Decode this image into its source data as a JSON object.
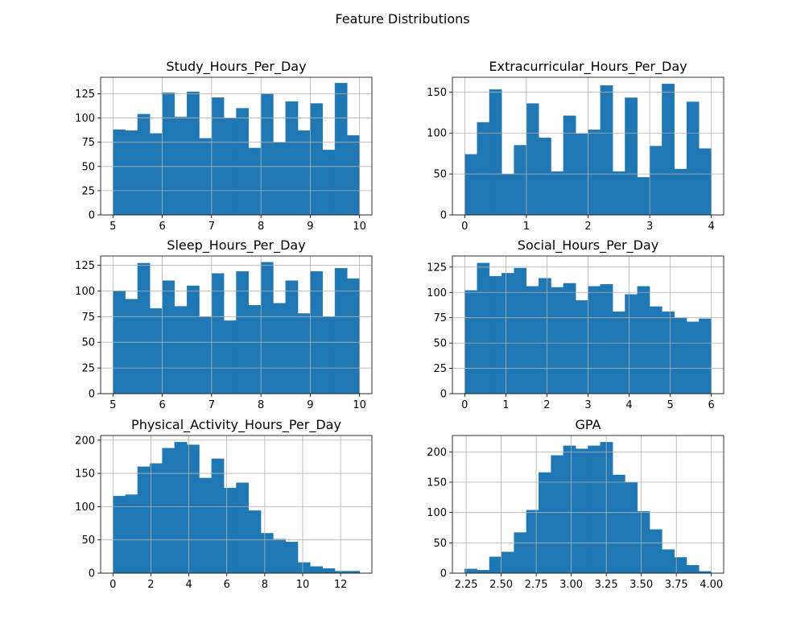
{
  "figure": {
    "title": "Feature Distributions"
  },
  "chart_data": [
    {
      "type": "bar",
      "title": "Study_Hours_Per_Day",
      "xlabel": "",
      "ylabel": "",
      "bar_color": "#1f77b4",
      "grid": true,
      "bin_edges": [
        5.0,
        5.25,
        5.5,
        5.75,
        6.0,
        6.25,
        6.5,
        6.75,
        7.0,
        7.25,
        7.5,
        7.75,
        8.0,
        8.25,
        8.5,
        8.75,
        9.0,
        9.25,
        9.5,
        9.75,
        10.0
      ],
      "values": [
        88,
        87,
        104,
        84,
        126,
        101,
        127,
        79,
        121,
        100,
        110,
        69,
        125,
        75,
        117,
        87,
        115,
        67,
        136,
        82
      ],
      "xlim": [
        4.75,
        10.25
      ],
      "ylim": [
        0,
        142
      ],
      "xticks": [
        5,
        6,
        7,
        8,
        9,
        10
      ],
      "xtick_labels": [
        "5",
        "6",
        "7",
        "8",
        "9",
        "10"
      ],
      "yticks": [
        0,
        25,
        50,
        75,
        100,
        125
      ],
      "ytick_labels": [
        "0",
        "25",
        "50",
        "75",
        "100",
        "125"
      ]
    },
    {
      "type": "bar",
      "title": "Extracurricular_Hours_Per_Day",
      "xlabel": "",
      "ylabel": "",
      "bar_color": "#1f77b4",
      "grid": true,
      "bin_edges": [
        0.0,
        0.2,
        0.4,
        0.6,
        0.8,
        1.0,
        1.2,
        1.4,
        1.6,
        1.8,
        2.0,
        2.2,
        2.4,
        2.6,
        2.8,
        3.0,
        3.2,
        3.4,
        3.6,
        3.8,
        4.0
      ],
      "values": [
        74,
        113,
        153,
        50,
        85,
        136,
        94,
        53,
        121,
        99,
        104,
        158,
        53,
        143,
        46,
        84,
        160,
        56,
        138,
        81
      ],
      "xlim": [
        -0.2,
        4.2
      ],
      "ylim": [
        0,
        168
      ],
      "xticks": [
        0,
        1,
        2,
        3,
        4
      ],
      "xtick_labels": [
        "0",
        "1",
        "2",
        "3",
        "4"
      ],
      "yticks": [
        0,
        50,
        100,
        150
      ],
      "ytick_labels": [
        "0",
        "50",
        "100",
        "150"
      ]
    },
    {
      "type": "bar",
      "title": "Sleep_Hours_Per_Day",
      "xlabel": "",
      "ylabel": "",
      "bar_color": "#1f77b4",
      "grid": true,
      "bin_edges": [
        5.0,
        5.25,
        5.5,
        5.75,
        6.0,
        6.25,
        6.5,
        6.75,
        7.0,
        7.25,
        7.5,
        7.75,
        8.0,
        8.25,
        8.5,
        8.75,
        9.0,
        9.25,
        9.5,
        9.75,
        10.0
      ],
      "values": [
        100,
        92,
        127,
        83,
        110,
        85,
        105,
        75,
        117,
        71,
        119,
        86,
        128,
        88,
        110,
        78,
        119,
        75,
        122,
        112
      ],
      "xlim": [
        4.75,
        10.25
      ],
      "ylim": [
        0,
        134
      ],
      "xticks": [
        5,
        6,
        7,
        8,
        9,
        10
      ],
      "xtick_labels": [
        "5",
        "6",
        "7",
        "8",
        "9",
        "10"
      ],
      "yticks": [
        0,
        25,
        50,
        75,
        100,
        125
      ],
      "ytick_labels": [
        "0",
        "25",
        "50",
        "75",
        "100",
        "125"
      ]
    },
    {
      "type": "bar",
      "title": "Social_Hours_Per_Day",
      "xlabel": "",
      "ylabel": "",
      "bar_color": "#1f77b4",
      "grid": true,
      "bin_edges": [
        0.0,
        0.3,
        0.6,
        0.9,
        1.2,
        1.5,
        1.8,
        2.1,
        2.4,
        2.7,
        3.0,
        3.3,
        3.6,
        3.9,
        4.2,
        4.5,
        4.8,
        5.1,
        5.4,
        5.7,
        6.0
      ],
      "values": [
        102,
        129,
        116,
        119,
        124,
        106,
        114,
        105,
        109,
        92,
        106,
        108,
        81,
        98,
        106,
        86,
        81,
        75,
        71,
        74
      ],
      "xlim": [
        -0.3,
        6.3
      ],
      "ylim": [
        0,
        136
      ],
      "xticks": [
        0,
        1,
        2,
        3,
        4,
        5,
        6
      ],
      "xtick_labels": [
        "0",
        "1",
        "2",
        "3",
        "4",
        "5",
        "6"
      ],
      "yticks": [
        0,
        25,
        50,
        75,
        100,
        125
      ],
      "ytick_labels": [
        "0",
        "25",
        "50",
        "75",
        "100",
        "125"
      ]
    },
    {
      "type": "bar",
      "title": "Physical_Activity_Hours_Per_Day",
      "xlabel": "",
      "ylabel": "",
      "bar_color": "#1f77b4",
      "grid": true,
      "bin_edges": [
        0.0,
        0.65,
        1.3,
        1.95,
        2.6,
        3.25,
        3.9,
        4.55,
        5.2,
        5.85,
        6.5,
        7.15,
        7.8,
        8.45,
        9.1,
        9.75,
        10.4,
        11.05,
        11.7,
        12.35,
        13.0
      ],
      "values": [
        116,
        118,
        160,
        165,
        188,
        197,
        193,
        143,
        172,
        128,
        136,
        94,
        60,
        51,
        47,
        16,
        10,
        7,
        3,
        3
      ],
      "xlim": [
        -0.65,
        13.65
      ],
      "ylim": [
        0,
        207
      ],
      "xticks": [
        0,
        2,
        4,
        6,
        8,
        10,
        12
      ],
      "xtick_labels": [
        "0",
        "2",
        "4",
        "6",
        "8",
        "10",
        "12"
      ],
      "yticks": [
        0,
        50,
        100,
        150,
        200
      ],
      "ytick_labels": [
        "0",
        "50",
        "100",
        "150",
        "200"
      ]
    },
    {
      "type": "bar",
      "title": "GPA",
      "xlabel": "",
      "ylabel": "",
      "bar_color": "#1f77b4",
      "grid": true,
      "bin_edges": [
        2.24,
        2.328,
        2.416,
        2.504,
        2.592,
        2.68,
        2.768,
        2.856,
        2.944,
        3.032,
        3.12,
        3.208,
        3.296,
        3.384,
        3.472,
        3.56,
        3.648,
        3.736,
        3.824,
        3.912,
        4.0
      ],
      "values": [
        7,
        5,
        27,
        35,
        67,
        104,
        166,
        194,
        210,
        205,
        210,
        216,
        162,
        150,
        102,
        72,
        39,
        26,
        13,
        3
      ],
      "xlim": [
        2.152,
        4.088
      ],
      "ylim": [
        0,
        227
      ],
      "xticks": [
        2.25,
        2.5,
        2.75,
        3.0,
        3.25,
        3.5,
        3.75,
        4.0
      ],
      "xtick_labels": [
        "2.25",
        "2.50",
        "2.75",
        "3.00",
        "3.25",
        "3.50",
        "3.75",
        "4.00"
      ],
      "yticks": [
        0,
        50,
        100,
        150,
        200
      ],
      "ytick_labels": [
        "0",
        "50",
        "100",
        "150",
        "200"
      ]
    }
  ]
}
